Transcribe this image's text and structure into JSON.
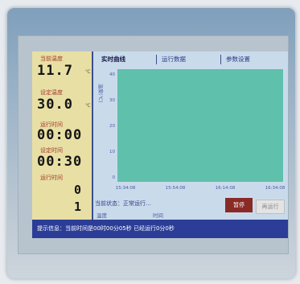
{
  "panel": {
    "current_temp_label": "当前温度",
    "current_temp_value": "11.7",
    "current_temp_unit": "℃",
    "set_temp_label": "设定温度",
    "set_temp_value": "30.0",
    "set_temp_unit": "℃",
    "run_time_label": "运行时间",
    "run_time_value": "00:00",
    "set_time_label": "设定时间",
    "set_time_value": "00:30",
    "segment_label": "运行时间",
    "segment_value": "0",
    "segment_value_2": "1"
  },
  "tabs": [
    "实时曲线",
    "运行数据",
    "参数设置"
  ],
  "chart_data": {
    "type": "line",
    "y_ticks": [
      "40",
      "30",
      "20",
      "10",
      "0"
    ],
    "x_ticks": [
      "15:34:08",
      "15:54:08",
      "16:14:08",
      "16:34:08"
    ],
    "ylabel": "温度(℃)",
    "series": []
  },
  "status": {
    "line": "当前状态：正常运行…",
    "left_small": "温度",
    "right_small": "时间"
  },
  "buttons": {
    "pause": "暂停",
    "run": "再运行"
  },
  "footer": {
    "text": "提示信息：当前时间是00时00分05秒 已经运行0分0秒"
  },
  "colors": {
    "plot_area": "#5fc0ab",
    "bottom_bar": "#2b3d97",
    "left_panel": "#e8dfa4",
    "pause_button": "#8a2a26"
  }
}
